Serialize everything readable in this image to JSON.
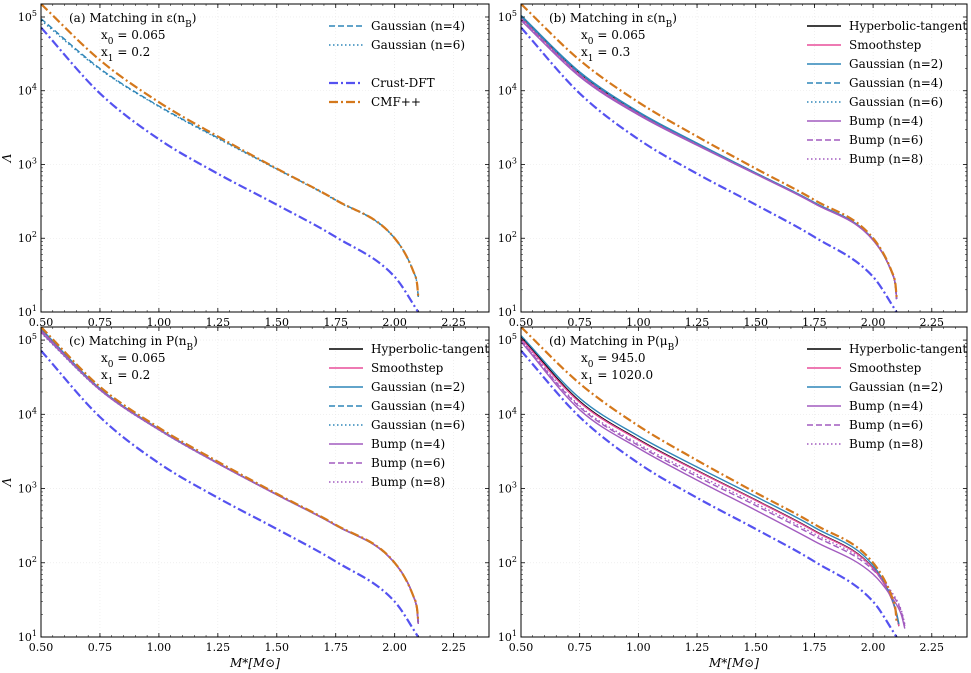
{
  "figure": {
    "ylabel": "Λ",
    "xlabel": "M*[M⊙]"
  },
  "colors": {
    "Hyperbolic-tangent": "#000000",
    "Smoothstep": "#e84f9a",
    "Gaussian (n=2)": "#2f86b8",
    "Gaussian (n=4)": "#2f86b8",
    "Gaussian (n=6)": "#2f86b8",
    "Bump (n=4)": "#a25bbf",
    "Bump (n=6)": "#a25bbf",
    "Bump (n=8)": "#a25bbf",
    "Crust-DFT": "#5552f0",
    "CMF++": "#d4781c"
  },
  "styles": {
    "Hyperbolic-tangent": "solid",
    "Smoothstep": "solid",
    "Gaussian (n=2)": "solid",
    "Gaussian (n=4)": "dashed",
    "Gaussian (n=6)": "dotted",
    "Bump (n=4)": "solid",
    "Bump (n=6)": "dashed",
    "Bump (n=8)": "dotted",
    "Crust-DFT": "dashdot",
    "CMF++": "dashdot"
  },
  "chart_data": [
    {
      "type": "line",
      "panel": "(a)",
      "title": "(a) Matching in ε(n_B)",
      "annotation_lines": [
        "(a)  Matching in ε(n_B)",
        "x_0 = 0.065",
        "x_1 = 0.2"
      ],
      "xlabel": "",
      "ylabel": "Λ",
      "yscale": "log",
      "xlim": [
        0.5,
        2.4
      ],
      "ylim": [
        10,
        150000
      ],
      "xticks": [
        "0.50",
        "0.75",
        "1.00",
        "1.25",
        "1.50",
        "1.75",
        "2.00",
        "2.25"
      ],
      "yticks": [
        "10^1",
        "10^2",
        "10^3",
        "10^4",
        "10^5"
      ],
      "legend": [
        [
          "Gaussian (n=4)",
          "Gaussian (n=6)"
        ],
        [
          "Crust-DFT",
          "CMF++"
        ]
      ],
      "legend_location": "top-right",
      "series": [
        {
          "name": "Gaussian (n=4)",
          "x": [
            0.5,
            0.75,
            1.0,
            1.25,
            1.5,
            1.75,
            2.0,
            2.08,
            2.095,
            2.1
          ],
          "y": [
            95000,
            20000,
            6200,
            2300,
            870,
            330,
            100,
            35,
            24,
            16
          ]
        },
        {
          "name": "Gaussian (n=6)",
          "x": [
            0.5,
            0.75,
            1.0,
            1.25,
            1.5,
            1.75,
            2.0,
            2.08,
            2.095,
            2.1
          ],
          "y": [
            90000,
            19500,
            6100,
            2250,
            860,
            325,
            99,
            35,
            24,
            16
          ]
        },
        {
          "name": "Crust-DFT",
          "x": [
            0.5,
            0.75,
            1.0,
            1.25,
            1.5,
            1.75,
            2.0,
            2.1
          ],
          "y": [
            72000,
            9200,
            2200,
            750,
            285,
            104,
            30,
            10
          ]
        },
        {
          "name": "CMF++",
          "x": [
            0.5,
            0.75,
            1.0,
            1.25,
            1.5,
            1.75,
            2.0,
            2.08,
            2.095,
            2.1
          ],
          "y": [
            150000,
            26000,
            7000,
            2400,
            880,
            330,
            100,
            35,
            24,
            16
          ]
        }
      ]
    },
    {
      "type": "line",
      "panel": "(b)",
      "title": "(b) Matching in ε(n_B)",
      "annotation_lines": [
        "(b)  Matching in ε(n_B)",
        "x_0 = 0.065",
        "x_1 = 0.3"
      ],
      "xlabel": "",
      "ylabel": "",
      "yscale": "log",
      "xlim": [
        0.5,
        2.4
      ],
      "ylim": [
        10,
        150000
      ],
      "xticks": [
        "0.50",
        "0.75",
        "1.00",
        "1.25",
        "1.50",
        "1.75",
        "2.00",
        "2.25"
      ],
      "yticks": [
        "10^1",
        "10^2",
        "10^3",
        "10^4",
        "10^5"
      ],
      "legend": [
        [
          "Hyperbolic-tangent",
          "Smoothstep",
          "Gaussian (n=2)",
          "Gaussian (n=4)",
          "Gaussian (n=6)",
          "Bump (n=4)",
          "Bump (n=6)",
          "Bump (n=8)"
        ]
      ],
      "legend_location": "top-right",
      "series": [
        {
          "name": "Hyperbolic-tangent",
          "x": [
            0.5,
            0.75,
            1.0,
            1.25,
            1.5,
            1.75,
            2.0,
            2.08,
            2.095,
            2.1
          ],
          "y": [
            100000,
            17000,
            5000,
            1900,
            760,
            300,
            95,
            34,
            23,
            15
          ]
        },
        {
          "name": "Smoothstep",
          "x": [
            0.5,
            0.75,
            1.0,
            1.25,
            1.5,
            1.75,
            2.0,
            2.08,
            2.095,
            2.1
          ],
          "y": [
            98000,
            16500,
            4900,
            1880,
            755,
            298,
            95,
            34,
            23,
            15
          ]
        },
        {
          "name": "Gaussian (n=2)",
          "x": [
            0.5,
            0.75,
            1.0,
            1.25,
            1.5,
            1.75,
            2.0,
            2.08,
            2.095,
            2.1
          ],
          "y": [
            105000,
            18000,
            5200,
            1950,
            770,
            305,
            96,
            34,
            23,
            15
          ]
        },
        {
          "name": "Gaussian (n=4)",
          "x": [
            0.5,
            0.75,
            1.0,
            1.25,
            1.5,
            1.75,
            2.0,
            2.08,
            2.095,
            2.1
          ],
          "y": [
            102000,
            17500,
            5100,
            1920,
            765,
            302,
            96,
            34,
            23,
            15
          ]
        },
        {
          "name": "Gaussian (n=6)",
          "x": [
            0.5,
            0.75,
            1.0,
            1.25,
            1.5,
            1.75,
            2.0,
            2.08,
            2.095,
            2.1
          ],
          "y": [
            99000,
            17200,
            5050,
            1910,
            762,
            300,
            95,
            34,
            23,
            15
          ]
        },
        {
          "name": "Bump (n=4)",
          "x": [
            0.5,
            0.75,
            1.0,
            1.25,
            1.5,
            1.75,
            2.0,
            2.08,
            2.095,
            2.1
          ],
          "y": [
            90000,
            15500,
            4700,
            1820,
            740,
            295,
            94,
            34,
            23,
            15
          ]
        },
        {
          "name": "Bump (n=6)",
          "x": [
            0.5,
            0.75,
            1.0,
            1.25,
            1.5,
            1.75,
            2.0,
            2.08,
            2.095,
            2.1
          ],
          "y": [
            93000,
            16000,
            4800,
            1850,
            748,
            297,
            94,
            34,
            23,
            15
          ]
        },
        {
          "name": "Bump (n=8)",
          "x": [
            0.5,
            0.75,
            1.0,
            1.25,
            1.5,
            1.75,
            2.0,
            2.08,
            2.095,
            2.1
          ],
          "y": [
            95000,
            16300,
            4850,
            1860,
            750,
            298,
            95,
            34,
            23,
            15
          ]
        },
        {
          "name": "Crust-DFT",
          "x": [
            0.5,
            0.75,
            1.0,
            1.25,
            1.5,
            1.75,
            2.0,
            2.1
          ],
          "y": [
            72000,
            9200,
            2200,
            750,
            285,
            104,
            30,
            10
          ]
        },
        {
          "name": "CMF++",
          "x": [
            0.5,
            0.75,
            1.0,
            1.25,
            1.5,
            1.75,
            2.0,
            2.08,
            2.095,
            2.1
          ],
          "y": [
            150000,
            26000,
            7000,
            2400,
            880,
            330,
            100,
            35,
            24,
            16
          ]
        }
      ]
    },
    {
      "type": "line",
      "panel": "(c)",
      "title": "(c) Matching in P(n_B)",
      "annotation_lines": [
        "(c)  Matching in P(n_B)",
        "x_0 = 0.065",
        "x_1 = 0.2"
      ],
      "xlabel": "M*[M⊙]",
      "ylabel": "Λ",
      "yscale": "log",
      "xlim": [
        0.5,
        2.4
      ],
      "ylim": [
        10,
        150000
      ],
      "xticks": [
        "0.50",
        "0.75",
        "1.00",
        "1.25",
        "1.50",
        "1.75",
        "2.00",
        "2.25"
      ],
      "yticks": [
        "10^1",
        "10^2",
        "10^3",
        "10^4",
        "10^5"
      ],
      "legend": [
        [
          "Hyperbolic-tangent",
          "Smoothstep",
          "Gaussian (n=2)",
          "Gaussian (n=4)",
          "Gaussian (n=6)",
          "Bump (n=4)",
          "Bump (n=6)",
          "Bump (n=8)"
        ]
      ],
      "legend_location": "top-right",
      "series": [
        {
          "name": "Hyperbolic-tangent",
          "x": [
            0.5,
            0.75,
            1.0,
            1.25,
            1.5,
            1.75,
            2.0,
            2.08,
            2.095,
            2.1
          ],
          "y": [
            140000,
            22000,
            6300,
            2200,
            830,
            320,
            99,
            35,
            23,
            15
          ]
        },
        {
          "name": "Smoothstep",
          "x": [
            0.5,
            0.75,
            1.0,
            1.25,
            1.5,
            1.75,
            2.0,
            2.08,
            2.095,
            2.1
          ],
          "y": [
            138000,
            21800,
            6250,
            2190,
            828,
            320,
            99,
            35,
            23,
            15
          ]
        },
        {
          "name": "Gaussian (n=2)",
          "x": [
            0.5,
            0.75,
            1.0,
            1.25,
            1.5,
            1.75,
            2.0,
            2.08,
            2.095,
            2.1
          ],
          "y": [
            142000,
            22200,
            6350,
            2210,
            832,
            321,
            99,
            35,
            23,
            15
          ]
        },
        {
          "name": "Gaussian (n=4)",
          "x": [
            0.5,
            0.75,
            1.0,
            1.25,
            1.5,
            1.75,
            2.0,
            2.08,
            2.095,
            2.1
          ],
          "y": [
            130000,
            21500,
            6200,
            2180,
            826,
            319,
            99,
            35,
            23,
            15
          ]
        },
        {
          "name": "Gaussian (n=6)",
          "x": [
            0.5,
            0.75,
            1.0,
            1.25,
            1.5,
            1.75,
            2.0,
            2.08,
            2.095,
            2.1
          ],
          "y": [
            125000,
            21200,
            6150,
            2170,
            824,
            318,
            99,
            35,
            23,
            15
          ]
        },
        {
          "name": "Bump (n=4)",
          "x": [
            0.5,
            0.75,
            1.0,
            1.25,
            1.5,
            1.75,
            2.0,
            2.08,
            2.095,
            2.1
          ],
          "y": [
            128000,
            21300,
            6180,
            2175,
            825,
            319,
            99,
            35,
            23,
            15
          ]
        },
        {
          "name": "Bump (n=6)",
          "x": [
            0.5,
            0.75,
            1.0,
            1.25,
            1.5,
            1.75,
            2.0,
            2.08,
            2.095,
            2.1
          ],
          "y": [
            133000,
            21600,
            6220,
            2185,
            827,
            320,
            99,
            35,
            23,
            15
          ]
        },
        {
          "name": "Bump (n=8)",
          "x": [
            0.5,
            0.75,
            1.0,
            1.25,
            1.5,
            1.75,
            2.0,
            2.08,
            2.095,
            2.1
          ],
          "y": [
            136000,
            21700,
            6240,
            2188,
            828,
            320,
            99,
            35,
            23,
            15
          ]
        },
        {
          "name": "Crust-DFT",
          "x": [
            0.5,
            0.75,
            1.0,
            1.25,
            1.5,
            1.75,
            2.0,
            2.1
          ],
          "y": [
            72000,
            9200,
            2200,
            750,
            285,
            104,
            30,
            10
          ]
        },
        {
          "name": "CMF++",
          "x": [
            0.5,
            0.75,
            1.0,
            1.25,
            1.5,
            1.75,
            2.0,
            2.08,
            2.095,
            2.1
          ],
          "y": [
            150000,
            23500,
            6600,
            2300,
            850,
            325,
            100,
            35,
            24,
            16
          ]
        }
      ]
    },
    {
      "type": "line",
      "panel": "(d)",
      "title": "(d) Matching in P(μ_B)",
      "annotation_lines": [
        "(d)  Matching in P(μ_B)",
        "x_0 = 945.0",
        "x_1 = 1020.0"
      ],
      "xlabel": "M*[M⊙]",
      "ylabel": "",
      "yscale": "log",
      "xlim": [
        0.5,
        2.4
      ],
      "ylim": [
        10,
        150000
      ],
      "xticks": [
        "0.50",
        "0.75",
        "1.00",
        "1.25",
        "1.50",
        "1.75",
        "2.00",
        "2.25"
      ],
      "yticks": [
        "10^1",
        "10^2",
        "10^3",
        "10^4",
        "10^5"
      ],
      "legend": [
        [
          "Hyperbolic-tangent",
          "Smoothstep",
          "Gaussian (n=2)",
          "Bump (n=4)",
          "Bump (n=6)",
          "Bump (n=8)"
        ]
      ],
      "legend_location": "top-right",
      "series": [
        {
          "name": "Hyperbolic-tangent",
          "x": [
            0.5,
            0.75,
            1.0,
            1.25,
            1.5,
            1.75,
            2.0,
            2.08,
            2.1,
            2.11
          ],
          "y": [
            110000,
            15000,
            4600,
            1750,
            700,
            270,
            85,
            32,
            20,
            14
          ]
        },
        {
          "name": "Smoothstep",
          "x": [
            0.5,
            0.75,
            1.0,
            1.25,
            1.5,
            1.75,
            2.0,
            2.08,
            2.1,
            2.11
          ],
          "y": [
            105000,
            14500,
            4500,
            1720,
            690,
            266,
            84,
            32,
            20,
            14
          ]
        },
        {
          "name": "Gaussian (n=2)",
          "x": [
            0.5,
            0.75,
            1.0,
            1.25,
            1.5,
            1.75,
            2.0,
            2.08,
            2.1,
            2.11
          ],
          "y": [
            115000,
            16500,
            5100,
            1950,
            780,
            300,
            92,
            33,
            21,
            15
          ]
        },
        {
          "name": "Bump (n=4)",
          "x": [
            0.5,
            0.75,
            1.0,
            1.25,
            1.5,
            1.75,
            2.0,
            2.08,
            2.12,
            2.135
          ],
          "y": [
            95000,
            11500,
            3500,
            1300,
            510,
            195,
            70,
            34,
            20,
            13
          ]
        },
        {
          "name": "Bump (n=6)",
          "x": [
            0.5,
            0.75,
            1.0,
            1.25,
            1.5,
            1.75,
            2.0,
            2.08,
            2.12,
            2.135
          ],
          "y": [
            98000,
            12500,
            3800,
            1450,
            590,
            230,
            80,
            38,
            22,
            14
          ]
        },
        {
          "name": "Bump (n=8)",
          "x": [
            0.5,
            0.75,
            1.0,
            1.25,
            1.5,
            1.75,
            2.0,
            2.08,
            2.12,
            2.135
          ],
          "y": [
            100000,
            13000,
            4000,
            1550,
            630,
            245,
            85,
            40,
            23,
            15
          ]
        },
        {
          "name": "Crust-DFT",
          "x": [
            0.5,
            0.75,
            1.0,
            1.25,
            1.5,
            1.75,
            2.0,
            2.1
          ],
          "y": [
            72000,
            9200,
            2200,
            750,
            285,
            104,
            30,
            10
          ]
        },
        {
          "name": "CMF++",
          "x": [
            0.5,
            0.75,
            1.0,
            1.25,
            1.5,
            1.75,
            2.0,
            2.08,
            2.095,
            2.1
          ],
          "y": [
            150000,
            26000,
            7000,
            2400,
            880,
            330,
            100,
            35,
            24,
            16
          ]
        }
      ]
    }
  ]
}
